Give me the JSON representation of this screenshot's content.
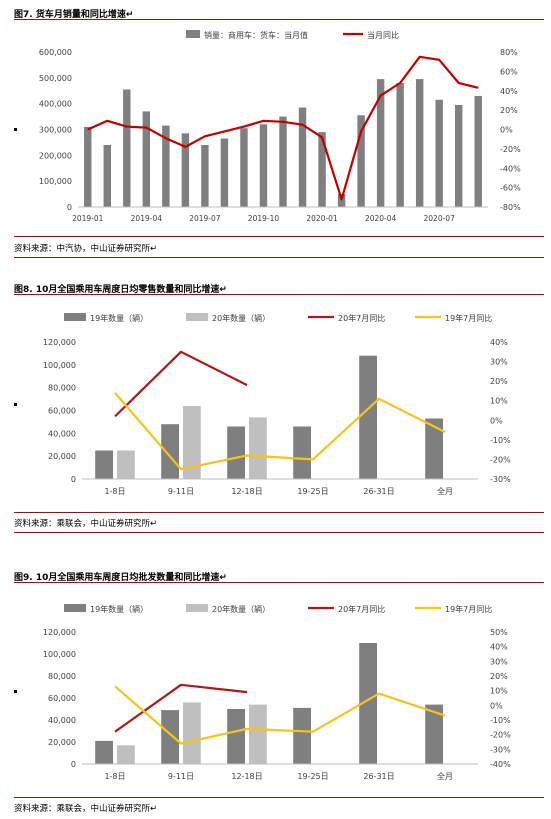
{
  "charts": [
    {
      "caption": "图7. 货车月销量和同比增速↵",
      "source": "资料来源：中汽协，中山证券研究所↵",
      "chart_data": {
        "type": "bar",
        "categories": [
          "2019-01",
          "2019-02",
          "2019-03",
          "2019-04",
          "2019-05",
          "2019-06",
          "2019-07",
          "2019-08",
          "2019-09",
          "2019-10",
          "2019-11",
          "2019-12",
          "2020-01",
          "2020-02",
          "2020-03",
          "2020-04",
          "2020-05",
          "2020-06",
          "2020-07",
          "2020-08",
          "2020-09"
        ],
        "tick_labels": [
          "2019-01",
          "2019-04",
          "2019-07",
          "2019-10",
          "2020-01",
          "2020-04",
          "2020-07"
        ],
        "series": [
          {
            "name": "销量：商用车：货车：当月值",
            "kind": "bar",
            "axis": "left",
            "color": "#7f7f7f",
            "values": [
              310000,
              240000,
              455000,
              370000,
              315000,
              285000,
              240000,
              265000,
              305000,
              320000,
              350000,
              385000,
              290000,
              50000,
              355000,
              495000,
              480000,
              495000,
              415000,
              395000,
              430000
            ]
          },
          {
            "name": "当月同比",
            "kind": "line",
            "axis": "right",
            "color": "#c00000",
            "values": [
              0.0,
              0.09,
              0.03,
              0.02,
              -0.09,
              -0.18,
              -0.07,
              -0.02,
              0.03,
              0.09,
              0.08,
              0.05,
              -0.08,
              -0.72,
              -0.02,
              0.35,
              0.48,
              0.75,
              0.72,
              0.48,
              0.43
            ]
          }
        ],
        "left_axis": {
          "min": 0,
          "max": 600000,
          "ticks": [
            0,
            100000,
            200000,
            300000,
            400000,
            500000,
            600000
          ],
          "tick_labels": [
            "0",
            "100,000",
            "200,000",
            "300,000",
            "400,000",
            "500,000",
            "600,000"
          ]
        },
        "right_axis": {
          "min": -0.8,
          "max": 0.8,
          "ticks": [
            -0.8,
            -0.6,
            -0.4,
            -0.2,
            0,
            0.2,
            0.4,
            0.6,
            0.8
          ],
          "tick_labels": [
            "-80%",
            "-60%",
            "-40%",
            "-20%",
            "0%",
            "20%",
            "40%",
            "60%",
            "80%"
          ]
        },
        "grid": false,
        "legend_position": "top"
      }
    },
    {
      "caption": "图8. 10月全国乘用车周度日均零售数量和同比增速↵",
      "source": "资料来源：乘联会，中山证券研究所↵",
      "chart_data": {
        "type": "bar",
        "categories": [
          "1-8日",
          "9-11日",
          "12-18日",
          "19-25日",
          "26-31日",
          "全月"
        ],
        "series": [
          {
            "name": "19年数量（辆）",
            "kind": "bar",
            "axis": "left",
            "color": "#7f7f7f",
            "values": [
              25000,
              48000,
              46000,
              46000,
              108000,
              53000
            ]
          },
          {
            "name": "20年数量（辆）",
            "kind": "bar",
            "axis": "left",
            "color": "#bfbfbf",
            "values": [
              25000,
              64000,
              54000,
              null,
              null,
              null
            ]
          },
          {
            "name": "20年7月同比",
            "kind": "line",
            "axis": "right",
            "color": "#b01818",
            "values": [
              0.02,
              0.35,
              0.18,
              null,
              null,
              null
            ]
          },
          {
            "name": "19年7月同比",
            "kind": "line",
            "axis": "right",
            "color": "#f5c518",
            "values": [
              0.14,
              -0.25,
              -0.18,
              -0.2,
              0.11,
              -0.06
            ]
          }
        ],
        "left_axis": {
          "min": 0,
          "max": 120000,
          "ticks": [
            0,
            20000,
            40000,
            60000,
            80000,
            100000,
            120000
          ],
          "tick_labels": [
            "0",
            "20,000",
            "40,000",
            "60,000",
            "80,000",
            "100,000",
            "120,000"
          ]
        },
        "right_axis": {
          "min": -0.3,
          "max": 0.4,
          "ticks": [
            -0.3,
            -0.2,
            -0.1,
            0,
            0.1,
            0.2,
            0.3,
            0.4
          ],
          "tick_labels": [
            "-30%",
            "-20%",
            "-10%",
            "0%",
            "10%",
            "20%",
            "30%",
            "40%"
          ]
        },
        "grid": false,
        "legend_position": "top"
      }
    },
    {
      "caption": "图9. 10月全国乘用车周度日均批发数量和同比增速↵",
      "source": "资料来源：乘联会，中山证券研究所↵",
      "chart_data": {
        "type": "bar",
        "categories": [
          "1-8日",
          "9-11日",
          "12-18日",
          "19-25日",
          "26-31日",
          "全月"
        ],
        "series": [
          {
            "name": "19年数量（辆）",
            "kind": "bar",
            "axis": "left",
            "color": "#7f7f7f",
            "values": [
              21000,
              49000,
              50000,
              51000,
              110000,
              54000
            ]
          },
          {
            "name": "20年数量（辆）",
            "kind": "bar",
            "axis": "left",
            "color": "#bfbfbf",
            "values": [
              17000,
              56000,
              54000,
              null,
              null,
              null
            ]
          },
          {
            "name": "20年7月同比",
            "kind": "line",
            "axis": "right",
            "color": "#b01818",
            "values": [
              -0.18,
              0.14,
              0.09,
              null,
              null,
              null
            ]
          },
          {
            "name": "19年7月同比",
            "kind": "line",
            "axis": "right",
            "color": "#f5c518",
            "values": [
              0.13,
              -0.26,
              -0.16,
              -0.18,
              0.08,
              -0.07
            ]
          }
        ],
        "left_axis": {
          "min": 0,
          "max": 120000,
          "ticks": [
            0,
            20000,
            40000,
            60000,
            80000,
            100000,
            120000
          ],
          "tick_labels": [
            "0",
            "20,000",
            "40,000",
            "60,000",
            "80,000",
            "100,000",
            "120,000"
          ]
        },
        "right_axis": {
          "min": -0.4,
          "max": 0.5,
          "ticks": [
            -0.4,
            -0.3,
            -0.2,
            -0.1,
            0,
            0.1,
            0.2,
            0.3,
            0.4,
            0.5
          ],
          "tick_labels": [
            "-40%",
            "-30%",
            "-20%",
            "-10%",
            "0%",
            "10%",
            "20%",
            "30%",
            "40%",
            "50%"
          ]
        },
        "grid": false,
        "legend_position": "top"
      }
    }
  ]
}
